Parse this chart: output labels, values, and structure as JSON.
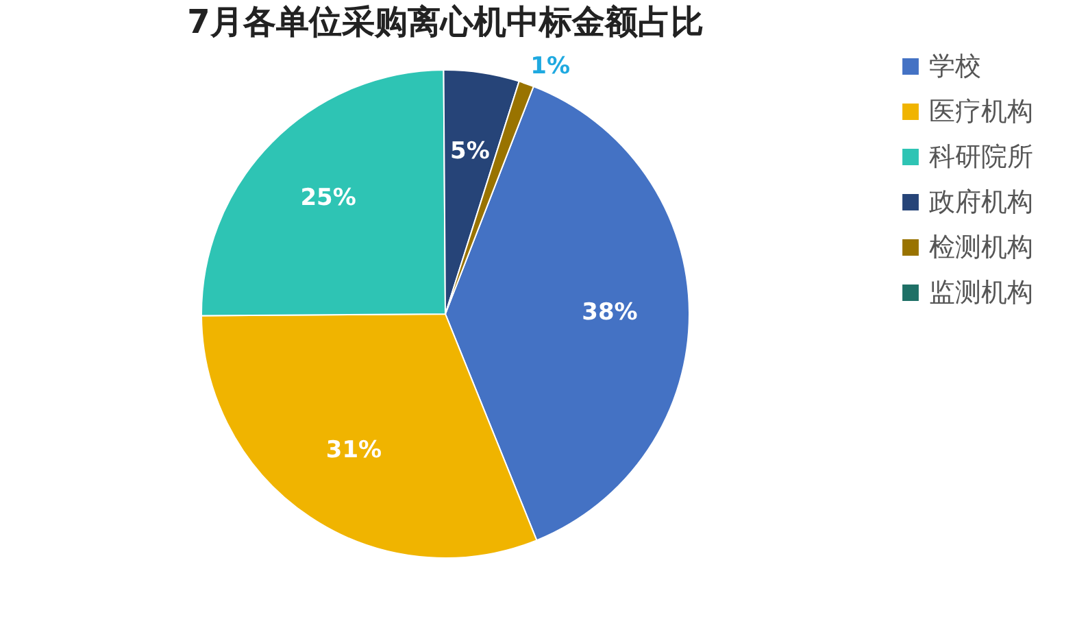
{
  "chart_data": {
    "type": "pie",
    "title": "7月各单位采购离心机中标金额占比",
    "categories": [
      "学校",
      "医疗机构",
      "科研院所",
      "政府机构",
      "检测机构",
      "监测机构"
    ],
    "values": [
      38,
      31,
      25,
      5,
      1,
      0
    ],
    "colors": [
      "#4472c4",
      "#f0b400",
      "#2ec4b4",
      "#264478",
      "#997300",
      "#1e7066"
    ],
    "value_labels": [
      "38%",
      "31%",
      "25%",
      "5%",
      "1%",
      null
    ],
    "legend": "right"
  }
}
